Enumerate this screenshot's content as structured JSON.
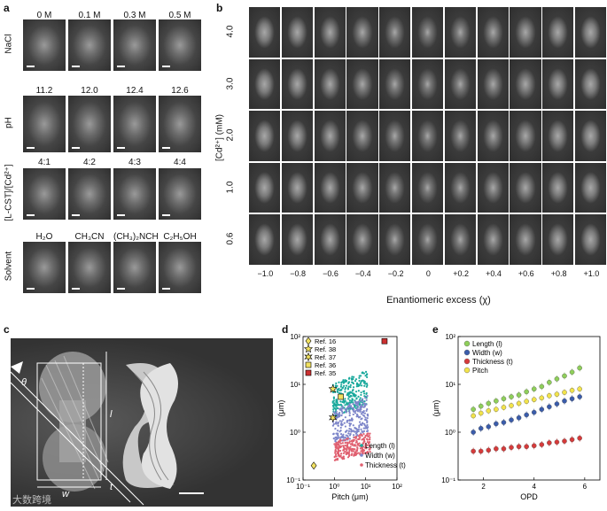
{
  "panel_a": {
    "label": "a",
    "rows": [
      {
        "name": "NaCl",
        "cols": [
          "0 M",
          "0.1 M",
          "0.3 M",
          "0.5 M"
        ]
      },
      {
        "name": "pH",
        "cols": [
          "11.2",
          "12.0",
          "12.4",
          "12.6"
        ]
      },
      {
        "name": "[L-CST]/[Cd²⁺]",
        "cols": [
          "4:1",
          "4:2",
          "4:3",
          "4:4"
        ]
      },
      {
        "name": "Solvent",
        "cols": [
          "H₂O",
          "CH₃CN",
          "(CH₃)₂NCH",
          "C₂H₅OH"
        ]
      }
    ]
  },
  "panel_b": {
    "label": "b",
    "ylabel": "[Cd²⁺] (mM)",
    "xlabel": "Enantiomeric excess (χ)",
    "rows": [
      "4.0",
      "3.0",
      "2.0",
      "1.0",
      "0.6"
    ],
    "cols": [
      "−1.0",
      "−0.8",
      "−0.6",
      "−0.4",
      "−0.2",
      "0",
      "+0.2",
      "+0.4",
      "+0.6",
      "+0.8",
      "+1.0"
    ]
  },
  "panel_c": {
    "label": "c",
    "annotations": {
      "theta": "θ",
      "length": "l",
      "width": "w",
      "thickness": "t"
    }
  },
  "panel_d": {
    "label": "d",
    "chart_data": {
      "type": "scatter",
      "xlabel": "Pitch (μm)",
      "ylabel": "(μm)",
      "xscale": "log",
      "yscale": "log",
      "xlim": [
        0.1,
        100
      ],
      "ylim": [
        0.1,
        100
      ],
      "xticks": [
        "10⁻¹",
        "10⁰",
        "10¹",
        "10²"
      ],
      "yticks": [
        "10⁻¹",
        "10⁰",
        "10¹",
        "10²"
      ],
      "legend_refs": [
        "Ref. 16",
        "Ref. 38",
        "Ref. 37",
        "Ref. 36",
        "Ref. 35"
      ],
      "legend_series": [
        "Length (l)",
        "Width (w)",
        "Thickness (t)"
      ],
      "series": [
        {
          "name": "Length (l)",
          "color": "#1aa99c",
          "cluster": {
            "x_range": [
              0.9,
              12
            ],
            "y_range": [
              2,
              20
            ]
          }
        },
        {
          "name": "Width (w)",
          "color": "#7d85c9",
          "cluster": {
            "x_range": [
              0.9,
              12
            ],
            "y_range": [
              0.5,
              6
            ]
          }
        },
        {
          "name": "Thickness (t)",
          "color": "#e06070",
          "cluster": {
            "x_range": [
              1,
              14
            ],
            "y_range": [
              0.25,
              1
            ]
          }
        }
      ],
      "reference_points": [
        {
          "name": "Ref. 16",
          "marker": "diamond",
          "color": "#f0e060",
          "x": 0.22,
          "y": 0.2
        },
        {
          "name": "Ref. 38",
          "marker": "star",
          "color": "#f0e060",
          "x": 0.9,
          "y": 8
        },
        {
          "name": "Ref. 37",
          "marker": "star6",
          "color": "#f0e060",
          "x": 0.9,
          "y": 2
        },
        {
          "name": "Ref. 36",
          "marker": "square",
          "color": "#f0e060",
          "x": 1.6,
          "y": 5.5
        },
        {
          "name": "Ref. 35",
          "marker": "square",
          "color": "#cc3030",
          "x": 40,
          "y": 80
        }
      ]
    }
  },
  "panel_e": {
    "label": "e",
    "chart_data": {
      "type": "scatter",
      "xlabel": "OPD",
      "ylabel": "(μm)",
      "yscale": "log",
      "xlim": [
        1,
        6.6
      ],
      "ylim": [
        0.1,
        100
      ],
      "xticks": [
        "2",
        "4",
        "6"
      ],
      "yticks": [
        "10⁻¹",
        "10⁰",
        "10¹",
        "10²"
      ],
      "series": [
        {
          "name": "Length (l)",
          "color": "#8fcf5a",
          "x": [
            1.6,
            1.9,
            2.2,
            2.5,
            2.8,
            3.1,
            3.4,
            3.7,
            4.0,
            4.3,
            4.6,
            4.9,
            5.2,
            5.5,
            5.8
          ],
          "y": [
            3,
            3.5,
            4,
            4.5,
            5,
            5.5,
            6,
            7,
            8,
            9,
            11,
            13,
            15,
            18,
            22
          ]
        },
        {
          "name": "Width (w)",
          "color": "#3a5cab",
          "x": [
            1.6,
            1.9,
            2.2,
            2.5,
            2.8,
            3.1,
            3.4,
            3.7,
            4.0,
            4.3,
            4.6,
            4.9,
            5.2,
            5.5,
            5.8
          ],
          "y": [
            1,
            1.2,
            1.3,
            1.5,
            1.6,
            1.8,
            2,
            2.3,
            2.6,
            3,
            3.4,
            3.9,
            4.5,
            5,
            5.5
          ]
        },
        {
          "name": "Thickness (t)",
          "color": "#d63a3a",
          "x": [
            1.6,
            1.9,
            2.2,
            2.5,
            2.8,
            3.1,
            3.4,
            3.7,
            4.0,
            4.3,
            4.6,
            4.9,
            5.2,
            5.5,
            5.8
          ],
          "y": [
            0.4,
            0.4,
            0.42,
            0.45,
            0.45,
            0.48,
            0.5,
            0.5,
            0.52,
            0.55,
            0.6,
            0.62,
            0.65,
            0.7,
            0.75
          ]
        },
        {
          "name": "Pitch",
          "color": "#f2e34a",
          "x": [
            1.6,
            1.9,
            2.2,
            2.5,
            2.8,
            3.1,
            3.4,
            3.7,
            4.0,
            4.3,
            4.6,
            4.9,
            5.2,
            5.5,
            5.8
          ],
          "y": [
            2.2,
            2.5,
            2.8,
            3,
            3.3,
            3.6,
            4,
            4.4,
            4.8,
            5.2,
            5.8,
            6.2,
            6.8,
            7.5,
            8
          ]
        }
      ]
    }
  },
  "watermark": "大数跨境"
}
